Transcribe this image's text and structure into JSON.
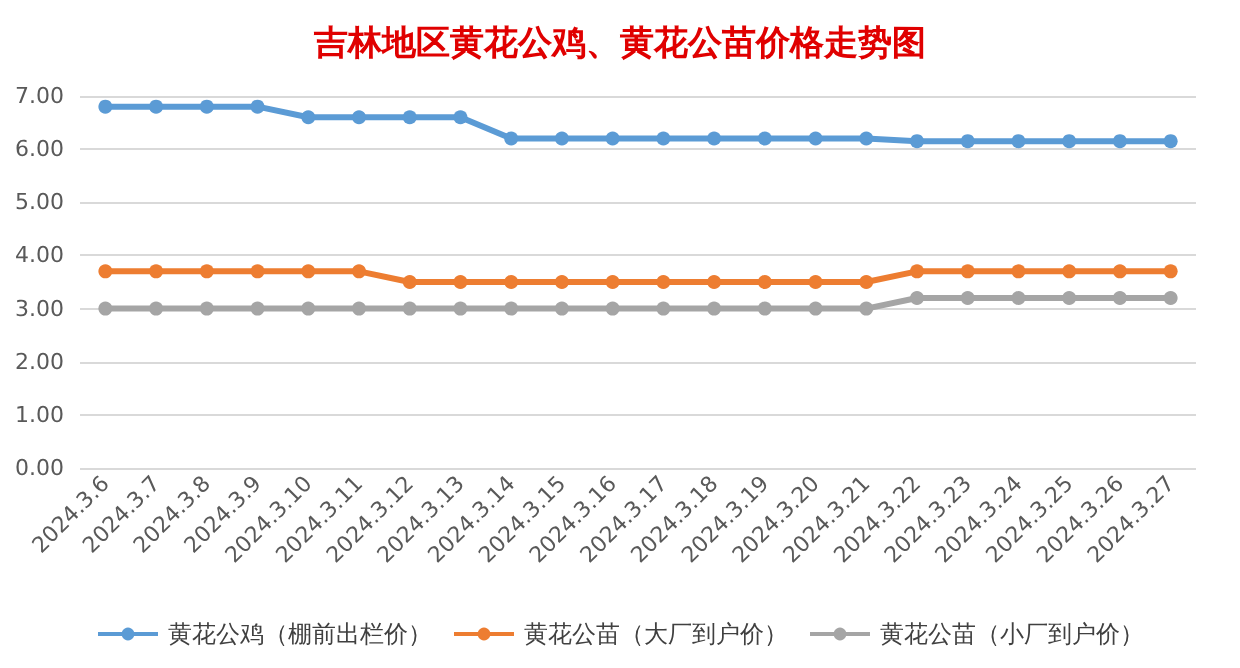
{
  "chart_data": {
    "type": "line",
    "title": "吉林地区黄花公鸡、黄花公苗价格走势图",
    "categories": [
      "2024.3.6",
      "2024.3.7",
      "2024.3.8",
      "2024.3.9",
      "2024.3.10",
      "2024.3.11",
      "2024.3.12",
      "2024.3.13",
      "2024.3.14",
      "2024.3.15",
      "2024.3.16",
      "2024.3.17",
      "2024.3.18",
      "2024.3.19",
      "2024.3.20",
      "2024.3.21",
      "2024.3.22",
      "2024.3.23",
      "2024.3.24",
      "2024.3.25",
      "2024.3.26",
      "2024.3.27"
    ],
    "series": [
      {
        "name": "黄花公鸡（棚前出栏价）",
        "color": "#5b9bd5",
        "values": [
          6.8,
          6.8,
          6.8,
          6.8,
          6.6,
          6.6,
          6.6,
          6.6,
          6.2,
          6.2,
          6.2,
          6.2,
          6.2,
          6.2,
          6.2,
          6.2,
          6.15,
          6.15,
          6.15,
          6.15,
          6.15,
          6.15
        ]
      },
      {
        "name": "黄花公苗（大厂到户价）",
        "color": "#ed7d31",
        "values": [
          3.7,
          3.7,
          3.7,
          3.7,
          3.7,
          3.7,
          3.5,
          3.5,
          3.5,
          3.5,
          3.5,
          3.5,
          3.5,
          3.5,
          3.5,
          3.5,
          3.7,
          3.7,
          3.7,
          3.7,
          3.7,
          3.7
        ]
      },
      {
        "name": "黄花公苗（小厂到户价）",
        "color": "#a5a5a5",
        "values": [
          3.0,
          3.0,
          3.0,
          3.0,
          3.0,
          3.0,
          3.0,
          3.0,
          3.0,
          3.0,
          3.0,
          3.0,
          3.0,
          3.0,
          3.0,
          3.0,
          3.2,
          3.2,
          3.2,
          3.2,
          3.2,
          3.2
        ]
      }
    ],
    "ylim": [
      0,
      7
    ],
    "yticks": [
      {
        "value": 0,
        "label": "0.00"
      },
      {
        "value": 1,
        "label": "1.00"
      },
      {
        "value": 2,
        "label": "2.00"
      },
      {
        "value": 3,
        "label": "3.00"
      },
      {
        "value": 4,
        "label": "4.00"
      },
      {
        "value": 5,
        "label": "5.00"
      },
      {
        "value": 6,
        "label": "6.00"
      },
      {
        "value": 7,
        "label": "7.00"
      }
    ],
    "grid": "y",
    "legend": "bottom",
    "marker": "circle",
    "line_style": "solid"
  }
}
